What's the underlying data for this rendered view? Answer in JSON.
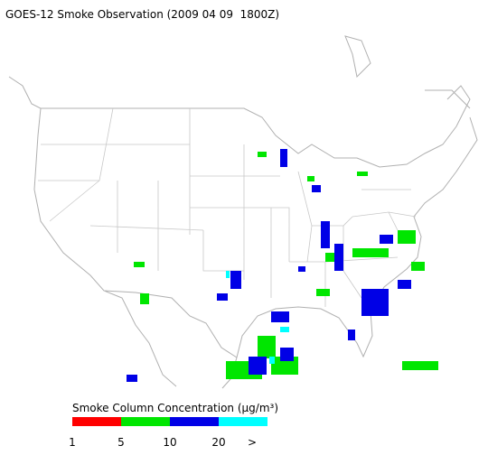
{
  "header": {
    "title": "GOES-12 Smoke Observation (2009 04 09  1800Z)"
  },
  "legend": {
    "title": "Smoke Column Concentration (μg/m³)",
    "colors": [
      "#ff0000",
      "#00e600",
      "#0000e6",
      "#00ffff"
    ],
    "labels": [
      "1",
      "5",
      "10",
      "20",
      ">"
    ]
  }
}
